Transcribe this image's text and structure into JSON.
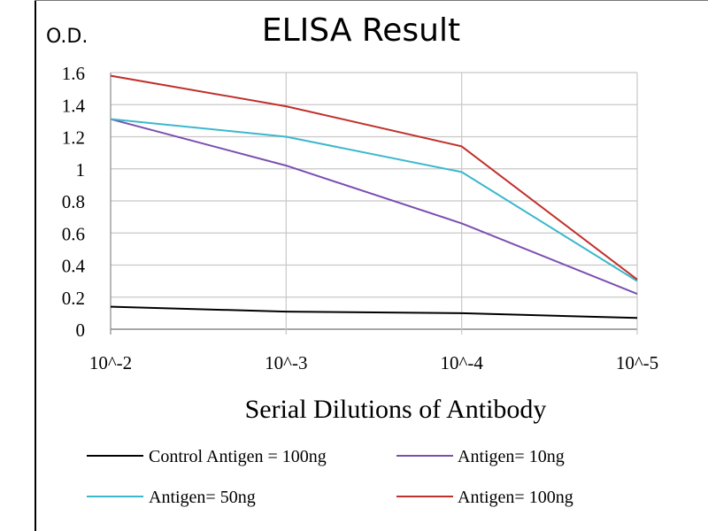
{
  "chart_data": {
    "type": "line",
    "title": "ELISA Result",
    "ylabel": "O.D.",
    "xlabel": "Serial Dilutions of Antibody",
    "categories": [
      "10^-2",
      "10^-3",
      "10^-4",
      "10^-5"
    ],
    "ylim": [
      0,
      1.6
    ],
    "yticks": [
      "0",
      "0.2",
      "0.4",
      "0.6",
      "0.8",
      "1",
      "1.2",
      "1.4",
      "1.6"
    ],
    "grid": true,
    "legend_position": "bottom",
    "series": [
      {
        "name": "Control Antigen = 100ng",
        "color": "#000000",
        "values": [
          0.14,
          0.11,
          0.1,
          0.07
        ]
      },
      {
        "name": "Antigen= 10ng",
        "color": "#7b4fb0",
        "values": [
          1.31,
          1.02,
          0.66,
          0.22
        ]
      },
      {
        "name": "Antigen= 50ng",
        "color": "#3bb8cc",
        "values": [
          1.31,
          1.2,
          0.98,
          0.3
        ]
      },
      {
        "name": "Antigen= 100ng",
        "color": "#c0302c",
        "values": [
          1.58,
          1.39,
          1.14,
          0.31
        ]
      }
    ]
  }
}
